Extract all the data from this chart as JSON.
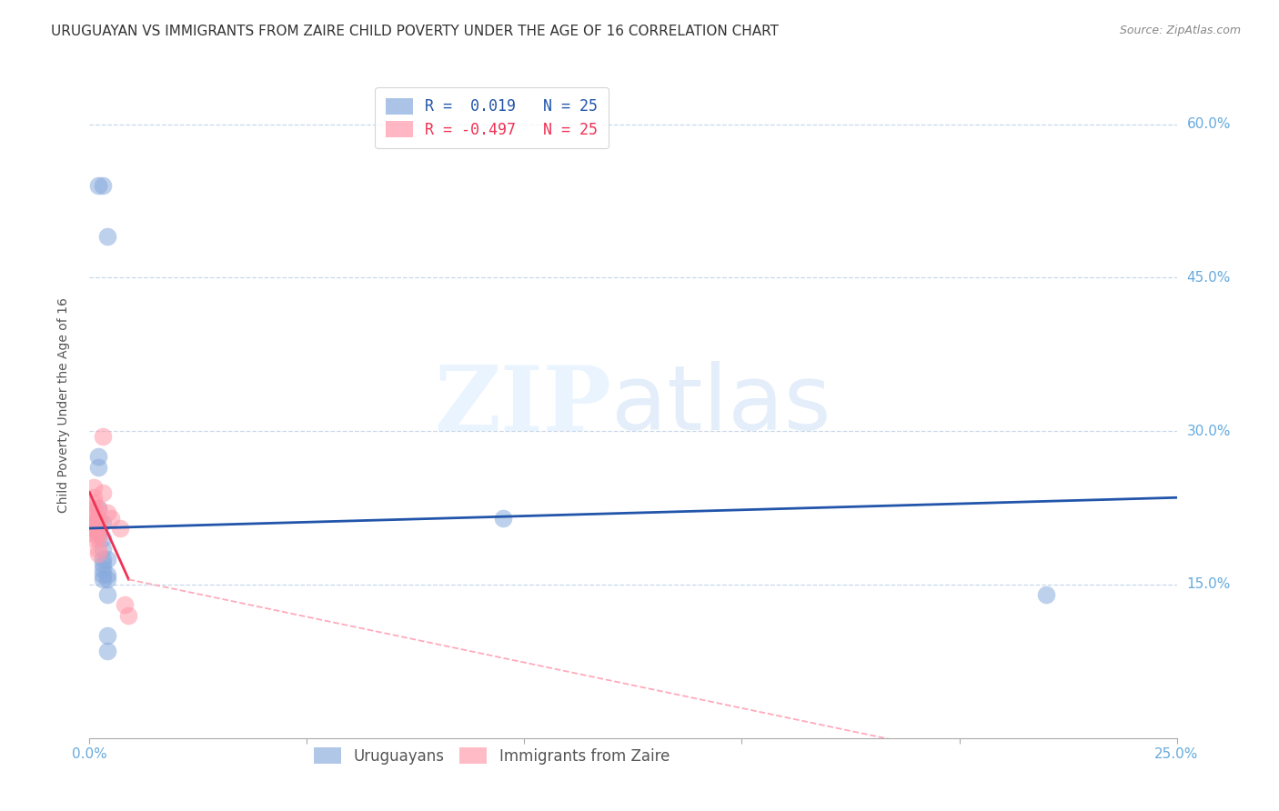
{
  "title": "URUGUAYAN VS IMMIGRANTS FROM ZAIRE CHILD POVERTY UNDER THE AGE OF 16 CORRELATION CHART",
  "source": "Source: ZipAtlas.com",
  "ylabel": "Child Poverty Under the Age of 16",
  "xlim": [
    0.0,
    0.25
  ],
  "ylim": [
    0.0,
    0.65
  ],
  "xticks": [
    0.0,
    0.05,
    0.1,
    0.15,
    0.2,
    0.25
  ],
  "xticklabels": [
    "0.0%",
    "",
    "",
    "",
    "",
    "25.0%"
  ],
  "ytick_positions": [
    0.15,
    0.3,
    0.45,
    0.6
  ],
  "ytick_labels": [
    "15.0%",
    "30.0%",
    "45.0%",
    "60.0%"
  ],
  "background_color": "#ffffff",
  "grid_color": "#c8d8e8",
  "uruguayan_color": "#88aadd",
  "zaire_color": "#ff99aa",
  "uruguayan_line_color": "#2255aa",
  "zaire_line_color": "#ee3355",
  "zaire_dashed_color": "#ffaabb",
  "tick_color": "#66aadd",
  "title_color": "#333333",
  "source_color": "#888888",
  "uruguayan_scatter": [
    [
      0.002,
      0.54
    ],
    [
      0.003,
      0.54
    ],
    [
      0.004,
      0.49
    ],
    [
      0.001,
      0.21
    ],
    [
      0.002,
      0.275
    ],
    [
      0.002,
      0.265
    ],
    [
      0.002,
      0.225
    ],
    [
      0.002,
      0.21
    ],
    [
      0.002,
      0.2
    ],
    [
      0.003,
      0.21
    ],
    [
      0.003,
      0.195
    ],
    [
      0.003,
      0.185
    ],
    [
      0.003,
      0.175
    ],
    [
      0.003,
      0.17
    ],
    [
      0.003,
      0.165
    ],
    [
      0.003,
      0.16
    ],
    [
      0.003,
      0.155
    ],
    [
      0.004,
      0.175
    ],
    [
      0.004,
      0.16
    ],
    [
      0.004,
      0.155
    ],
    [
      0.004,
      0.14
    ],
    [
      0.004,
      0.1
    ],
    [
      0.004,
      0.085
    ],
    [
      0.095,
      0.215
    ],
    [
      0.22,
      0.14
    ]
  ],
  "zaire_scatter": [
    [
      0.001,
      0.245
    ],
    [
      0.001,
      0.235
    ],
    [
      0.001,
      0.23
    ],
    [
      0.001,
      0.225
    ],
    [
      0.001,
      0.22
    ],
    [
      0.001,
      0.215
    ],
    [
      0.001,
      0.21
    ],
    [
      0.001,
      0.205
    ],
    [
      0.001,
      0.2
    ],
    [
      0.001,
      0.195
    ],
    [
      0.002,
      0.225
    ],
    [
      0.002,
      0.215
    ],
    [
      0.002,
      0.21
    ],
    [
      0.002,
      0.205
    ],
    [
      0.002,
      0.2
    ],
    [
      0.002,
      0.195
    ],
    [
      0.002,
      0.185
    ],
    [
      0.002,
      0.18
    ],
    [
      0.003,
      0.295
    ],
    [
      0.003,
      0.24
    ],
    [
      0.004,
      0.22
    ],
    [
      0.005,
      0.215
    ],
    [
      0.007,
      0.205
    ],
    [
      0.008,
      0.13
    ],
    [
      0.009,
      0.12
    ]
  ],
  "uruguayan_line_pts": [
    [
      0.0,
      0.205
    ],
    [
      0.25,
      0.235
    ]
  ],
  "zaire_line_solid_pts": [
    [
      0.0,
      0.24
    ],
    [
      0.009,
      0.155
    ]
  ],
  "zaire_line_dash_pts": [
    [
      0.009,
      0.155
    ],
    [
      0.25,
      -0.06
    ]
  ],
  "title_fontsize": 11,
  "axis_label_fontsize": 10,
  "tick_fontsize": 11,
  "legend_fontsize": 12,
  "source_fontsize": 9,
  "scatter_size": 200,
  "scatter_alpha": 0.55,
  "line_width": 2.0
}
